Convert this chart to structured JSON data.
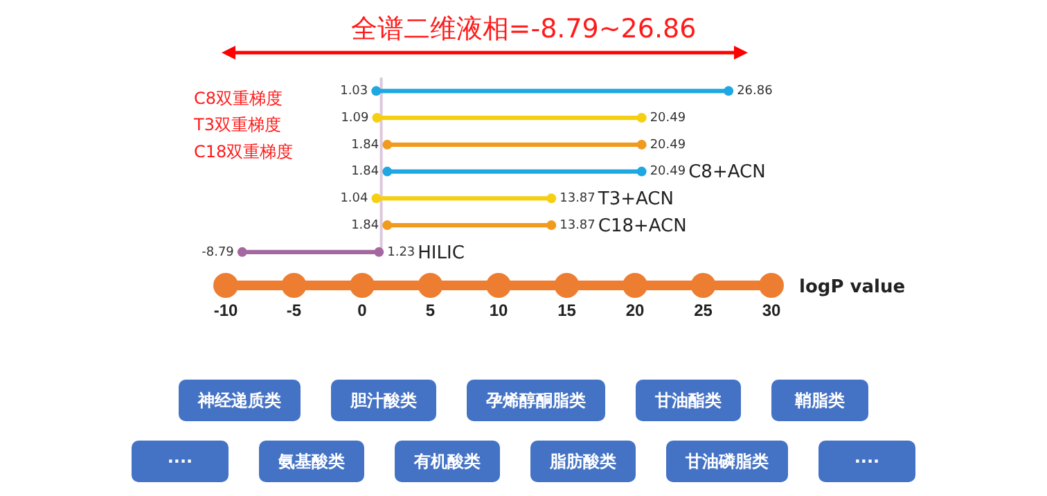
{
  "chart_data": {
    "type": "bar",
    "orientation": "horizontal",
    "title": "全谱二维液相=-8.79~26.86",
    "xlabel": "logP value",
    "categories": [
      "C8双重梯度",
      "T3双重梯度",
      "C18双重梯度",
      "C8+ACN",
      "T3+ACN",
      "C18+ACN",
      "HILIC"
    ],
    "base": [
      1.03,
      1.09,
      1.84,
      1.84,
      1.04,
      1.84,
      -8.79
    ],
    "values": [
      25.83,
      19.4,
      18.65,
      18.65,
      12.83,
      12.03,
      10.02
    ],
    "colors": [
      "#1ea7e1",
      "#f5cf12",
      "#f09a1e",
      "#1ea7e1",
      "#f5cf12",
      "#f09a1e",
      "#a5679f"
    ],
    "xlim": [
      -10,
      30
    ],
    "xticks": [
      -10,
      -5,
      0,
      5,
      10,
      15,
      20,
      25,
      30
    ],
    "grid": false,
    "legend": false,
    "marker": "circle",
    "ref_lines": [
      {
        "axis": "x",
        "value": 1.4,
        "color": "#dcc8dc"
      }
    ],
    "annotations": [
      {
        "text": "1.03",
        "x": 1.03,
        "y": "C8双重梯度"
      },
      {
        "text": "26.86",
        "x": 26.86,
        "y": "C8双重梯度"
      },
      {
        "text": "1.09",
        "x": 1.09,
        "y": "T3双重梯度"
      },
      {
        "text": "20.49",
        "x": 20.49,
        "y": "T3双重梯度"
      },
      {
        "text": "1.84",
        "x": 1.84,
        "y": "C18双重梯度"
      },
      {
        "text": "20.49",
        "x": 20.49,
        "y": "C18双重梯度"
      },
      {
        "text": "1.84",
        "x": 1.84,
        "y": "C8+ACN"
      },
      {
        "text": "20.49",
        "x": 20.49,
        "y": "C8+ACN"
      },
      {
        "text": "1.04",
        "x": 1.04,
        "y": "T3+ACN"
      },
      {
        "text": "13.87",
        "x": 13.87,
        "y": "T3+ACN"
      },
      {
        "text": "1.84",
        "x": 1.84,
        "y": "C18+ACN"
      },
      {
        "text": "13.87",
        "x": 13.87,
        "y": "C18+ACN"
      },
      {
        "text": "-8.79",
        "x": -8.79,
        "y": "HILIC"
      },
      {
        "text": "1.23",
        "x": 1.23,
        "y": "HILIC"
      },
      "神经递质类",
      "胆汁酸类",
      "孕烯醇酮脂类",
      "甘油酯类",
      "鞘脂类",
      "····",
      "氨基酸类",
      "有机酸类",
      "脂肪酸类",
      "甘油磷脂类",
      "····"
    ]
  }
}
